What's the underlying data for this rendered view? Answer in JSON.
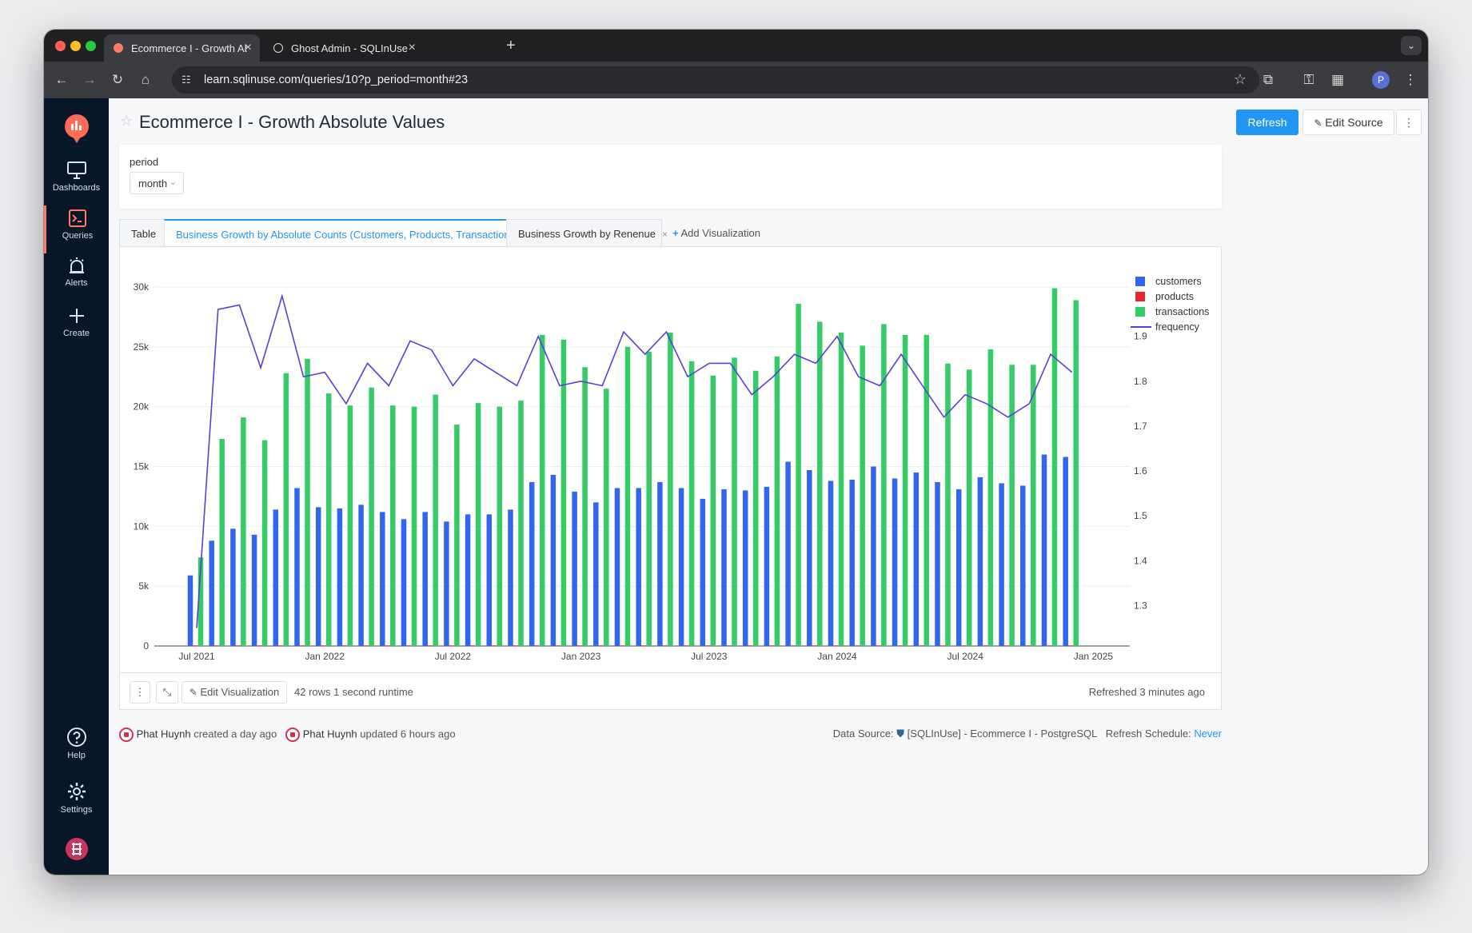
{
  "browser": {
    "tabs": [
      {
        "title": "Ecommerce I - Growth Absolu",
        "active": true
      },
      {
        "title": "Ghost Admin - SQLInUse",
        "active": false
      }
    ],
    "url": "learn.sqlinuse.com/queries/10?p_period=month#23",
    "profile_initial": "P"
  },
  "sidebar": {
    "items": [
      {
        "label": "Dashboards",
        "icon": "monitor-icon"
      },
      {
        "label": "Queries",
        "icon": "terminal-icon"
      },
      {
        "label": "Alerts",
        "icon": "alarm-icon"
      },
      {
        "label": "Create",
        "icon": "plus-icon"
      },
      {
        "label": "Help",
        "icon": "question-icon"
      },
      {
        "label": "Settings",
        "icon": "gear-icon"
      }
    ]
  },
  "query": {
    "title": "Ecommerce I - Growth Absolute Values",
    "refresh_label": "Refresh",
    "edit_source_label": "Edit Source",
    "more_label": "⋮"
  },
  "params": {
    "label": "period",
    "value": "month"
  },
  "viz_tabs": {
    "table": "Table",
    "counts": "Business Growth by Absolute Counts (Customers, Products, Transactions)",
    "revenue": "Business Growth by Renenue",
    "add": "Add Visualization"
  },
  "footer": {
    "edit_viz_label": "Edit Visualization",
    "rows": "42 rows",
    "runtime": "1 second runtime",
    "refreshed": "Refreshed 3 minutes ago"
  },
  "meta": {
    "creator": "Phat Huynh",
    "created": "created a day ago",
    "updater": "Phat Huynh",
    "updated": "updated 6 hours ago",
    "data_source_label": "Data Source:",
    "data_source": "[SQLInUse] - Ecommerce I - PostgreSQL",
    "schedule_label": "Refresh Schedule:",
    "schedule": "Never"
  },
  "chart_data": {
    "type": "bar",
    "x_start": "2021-07",
    "x_ticks": [
      "Jul 2021",
      "Jan 2022",
      "Jul 2022",
      "Jan 2023",
      "Jul 2023",
      "Jan 2024",
      "Jul 2024",
      "Jan 2025"
    ],
    "y_ticks": [
      "0",
      "5k",
      "10k",
      "15k",
      "20k",
      "25k",
      "30k"
    ],
    "ylim": [
      0,
      30000
    ],
    "y2_ticks": [
      "1.3",
      "1.4",
      "1.5",
      "1.6",
      "1.7",
      "1.8",
      "1.9"
    ],
    "y2lim": [
      1.21,
      2.01
    ],
    "legend_position": "top-right",
    "series": [
      {
        "name": "customers",
        "kind": "bar",
        "color": "#3366ee",
        "values": [
          5900,
          8800,
          9800,
          9300,
          11400,
          13200,
          11600,
          11500,
          11800,
          11200,
          10600,
          11200,
          10400,
          11000,
          11000,
          11400,
          13700,
          14300,
          12900,
          12000,
          13200,
          13200,
          13700,
          13200,
          12300,
          13100,
          13000,
          13300,
          15400,
          14700,
          13800,
          13900,
          15000,
          14000,
          14500,
          13700,
          13100,
          14100,
          13600,
          13400,
          16000,
          15800
        ]
      },
      {
        "name": "products",
        "kind": "bar",
        "color": "#e8262b",
        "values": [
          50,
          50,
          50,
          50,
          50,
          50,
          50,
          50,
          50,
          50,
          50,
          50,
          50,
          50,
          50,
          50,
          50,
          50,
          50,
          50,
          50,
          50,
          50,
          50,
          50,
          50,
          50,
          50,
          50,
          50,
          50,
          50,
          50,
          50,
          50,
          50,
          50,
          50,
          50,
          50,
          50,
          50
        ]
      },
      {
        "name": "transactions",
        "kind": "bar",
        "color": "#33cc66",
        "values": [
          7400,
          17300,
          19100,
          17200,
          22800,
          24000,
          21100,
          20100,
          21600,
          20100,
          20000,
          21000,
          18500,
          20300,
          20000,
          20500,
          26000,
          25600,
          23300,
          21500,
          25000,
          24600,
          26200,
          23800,
          22600,
          24100,
          23000,
          24200,
          28600,
          27100,
          26200,
          25100,
          26900,
          26000,
          26000,
          23600,
          23100,
          24800,
          23500,
          23500,
          29900,
          28900
        ]
      },
      {
        "name": "frequency",
        "kind": "line",
        "axis": "y2",
        "color": "#5a3fd6",
        "values": [
          1.25,
          1.96,
          1.97,
          1.83,
          1.99,
          1.81,
          1.82,
          1.75,
          1.84,
          1.79,
          1.89,
          1.87,
          1.79,
          1.85,
          1.82,
          1.79,
          1.9,
          1.79,
          1.8,
          1.79,
          1.91,
          1.86,
          1.91,
          1.81,
          1.84,
          1.84,
          1.77,
          1.81,
          1.86,
          1.84,
          1.9,
          1.81,
          1.79,
          1.86,
          1.79,
          1.72,
          1.77,
          1.75,
          1.72,
          1.75,
          1.86,
          1.82
        ]
      }
    ]
  }
}
